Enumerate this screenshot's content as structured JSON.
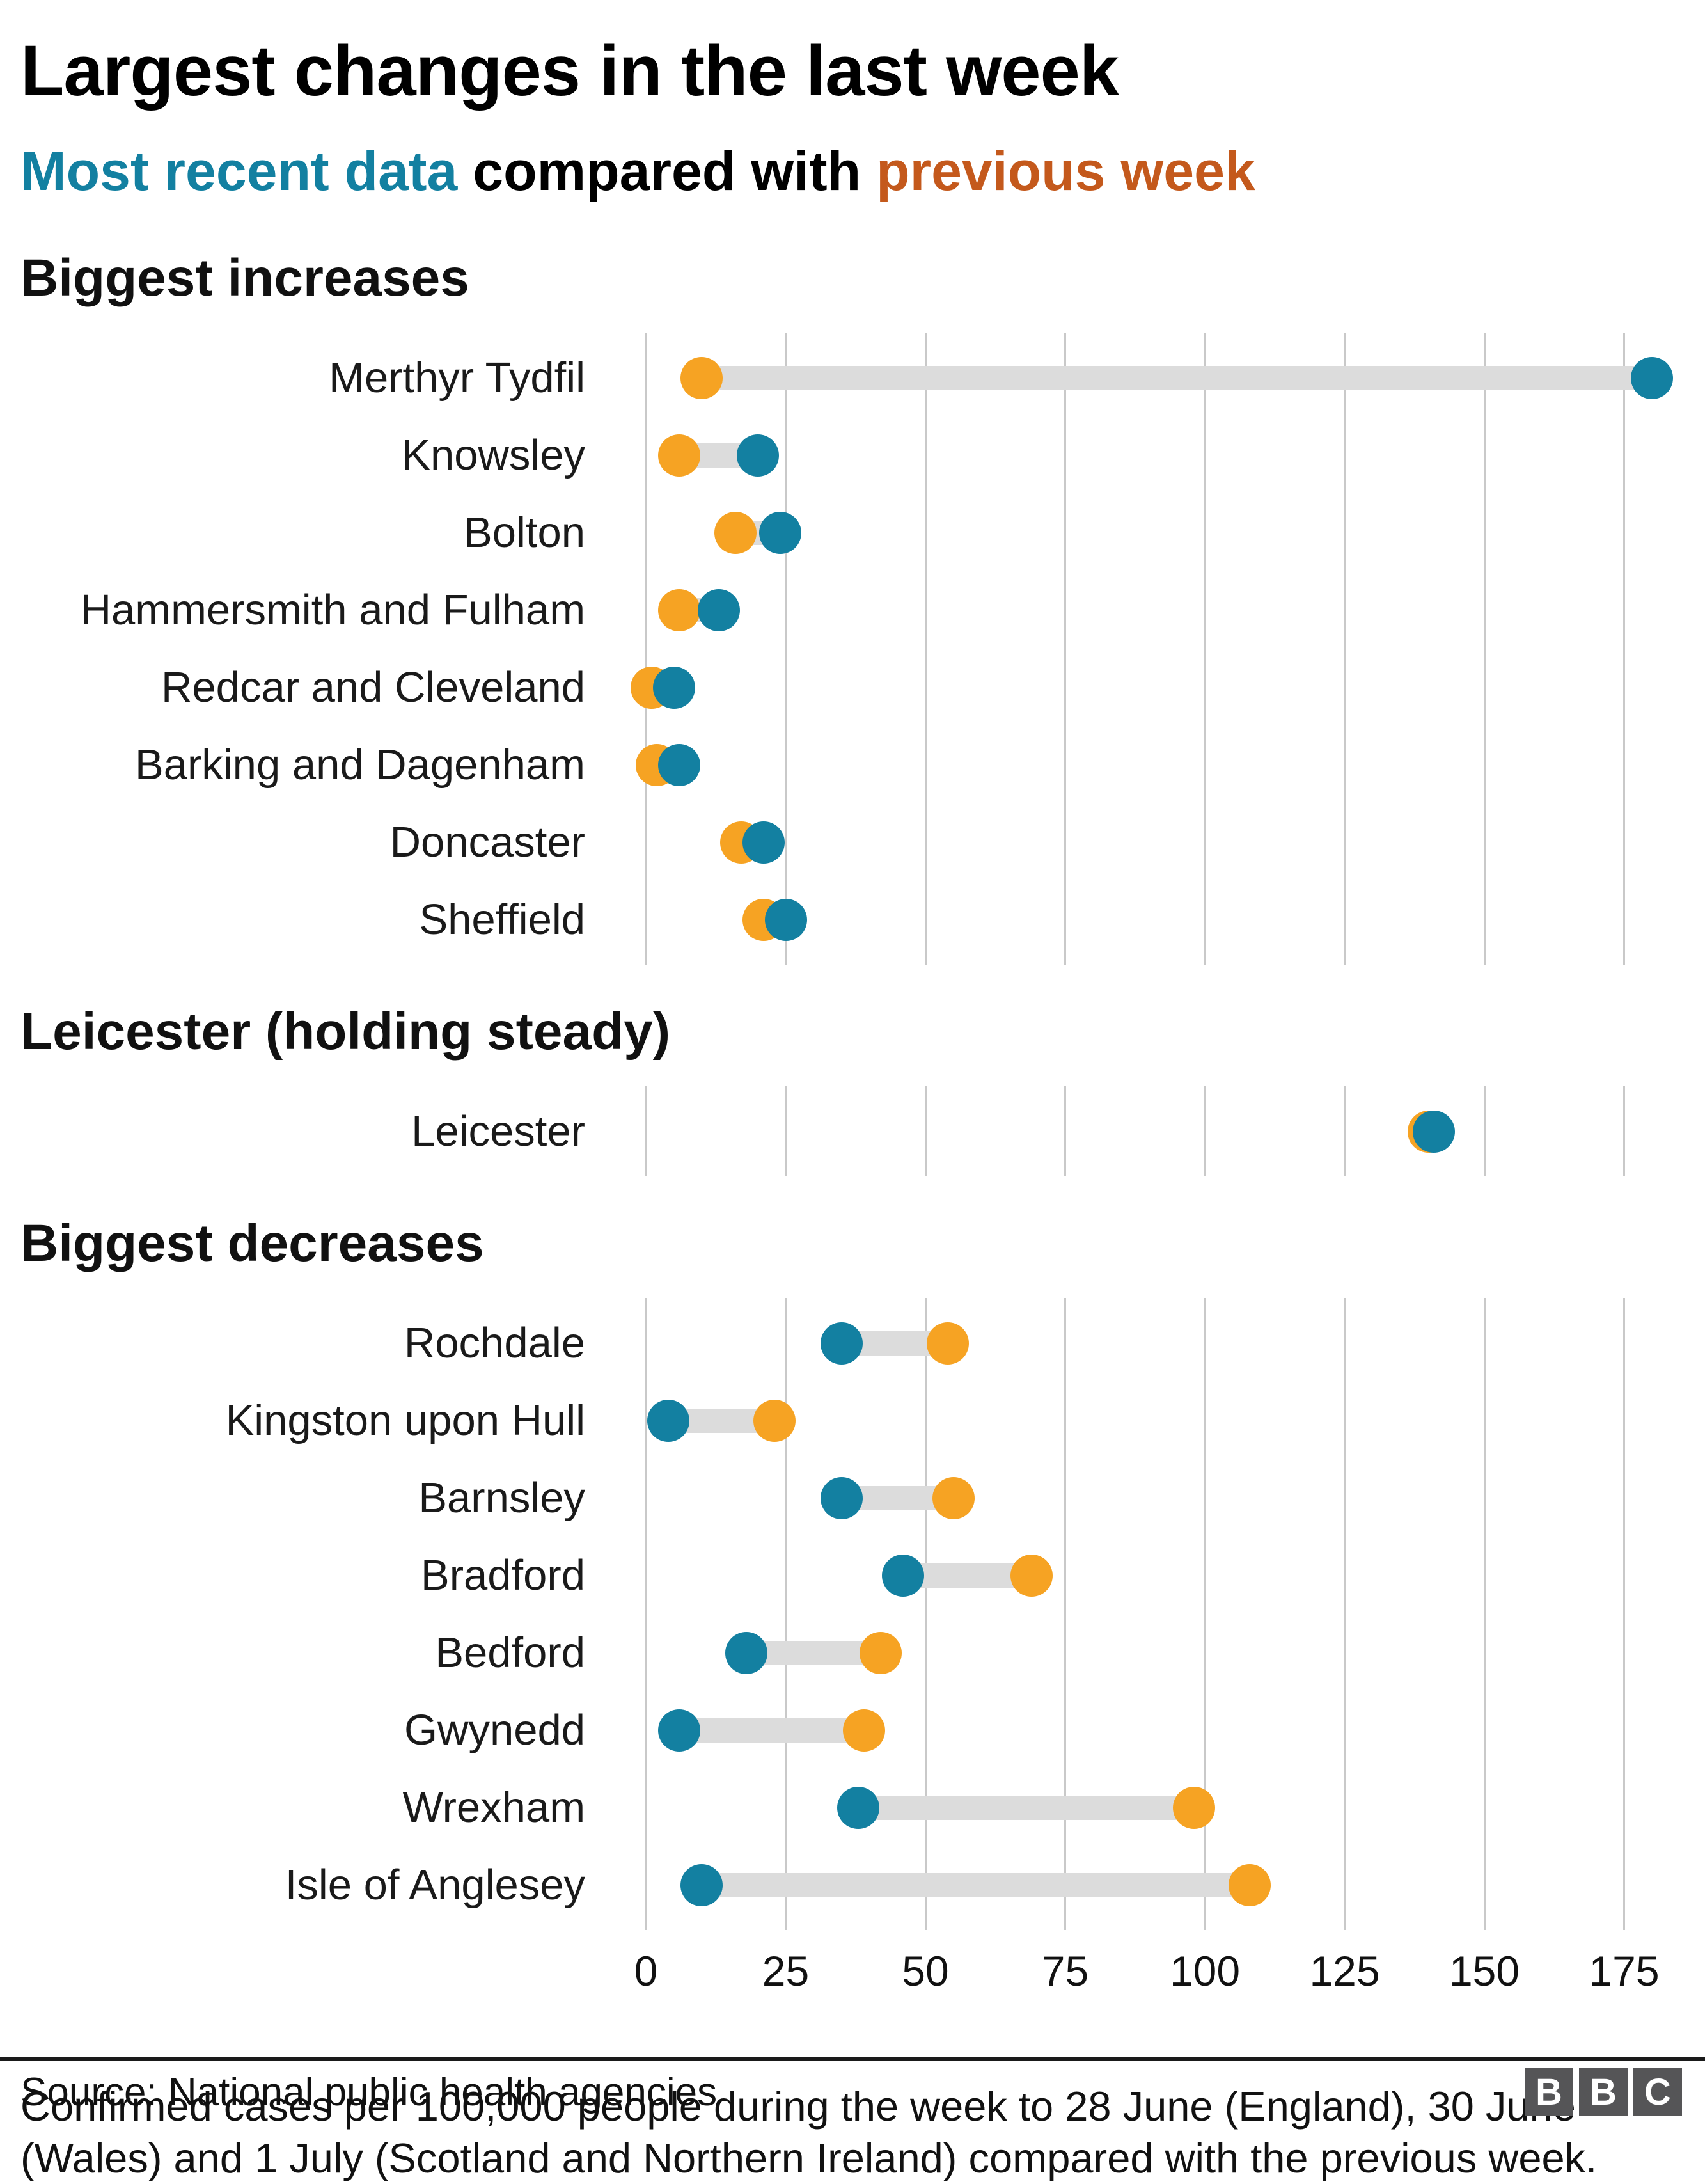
{
  "title": "Largest changes in the last week",
  "subtitle": {
    "recent_text": "Most recent data",
    "middle_text": " compared with ",
    "previous_text": "previous week"
  },
  "colors": {
    "recent_dot": "#1380A1",
    "previous_dot": "#F6A323",
    "subtitle_previous_text": "#C4591C",
    "connector": "#DCDCDC",
    "gridline": "#C9C9C9"
  },
  "chart_data": {
    "type": "dumbbell",
    "title": "Largest changes in the last week",
    "subtitle": "Most recent data compared with previous week",
    "unit": "Confirmed cases per 100,000 people",
    "legend": {
      "recent": "Most recent data",
      "previous": "previous week"
    },
    "axis": {
      "min": 0,
      "max": 175,
      "ticks": [
        0,
        25,
        50,
        75,
        100,
        125,
        150,
        175
      ]
    },
    "sections": [
      {
        "id": "increases",
        "heading": "Biggest increases",
        "rows": [
          {
            "label": "Merthyr Tydfil",
            "previous": 10,
            "recent": 180
          },
          {
            "label": "Knowsley",
            "previous": 6,
            "recent": 20
          },
          {
            "label": "Bolton",
            "previous": 16,
            "recent": 24
          },
          {
            "label": "Hammersmith and Fulham",
            "previous": 6,
            "recent": 13
          },
          {
            "label": "Redcar and Cleveland",
            "previous": 1,
            "recent": 5
          },
          {
            "label": "Barking and Dagenham",
            "previous": 2,
            "recent": 6
          },
          {
            "label": "Doncaster",
            "previous": 17,
            "recent": 21
          },
          {
            "label": "Sheffield",
            "previous": 21,
            "recent": 25
          }
        ]
      },
      {
        "id": "leicester",
        "heading": "Leicester (holding steady)",
        "rows": [
          {
            "label": "Leicester",
            "previous": 140,
            "recent": 141
          }
        ]
      },
      {
        "id": "decreases",
        "heading": "Biggest decreases",
        "rows": [
          {
            "label": "Rochdale",
            "previous": 54,
            "recent": 35
          },
          {
            "label": "Kingston upon Hull",
            "previous": 23,
            "recent": 4
          },
          {
            "label": "Barnsley",
            "previous": 55,
            "recent": 35
          },
          {
            "label": "Bradford",
            "previous": 69,
            "recent": 46
          },
          {
            "label": "Bedford",
            "previous": 42,
            "recent": 18
          },
          {
            "label": "Gwynedd",
            "previous": 39,
            "recent": 6
          },
          {
            "label": "Wrexham",
            "previous": 98,
            "recent": 38
          },
          {
            "label": "Isle of Anglesey",
            "previous": 108,
            "recent": 10
          }
        ]
      }
    ]
  },
  "footnote": "Confirmed cases per 100,000 people during the week to 28 June (England), 30 June (Wales) and 1 July (Scotland and Northern Ireland) compared with the previous week.",
  "source": "Source: National public health agencies",
  "logo_letters": [
    "B",
    "B",
    "C"
  ]
}
